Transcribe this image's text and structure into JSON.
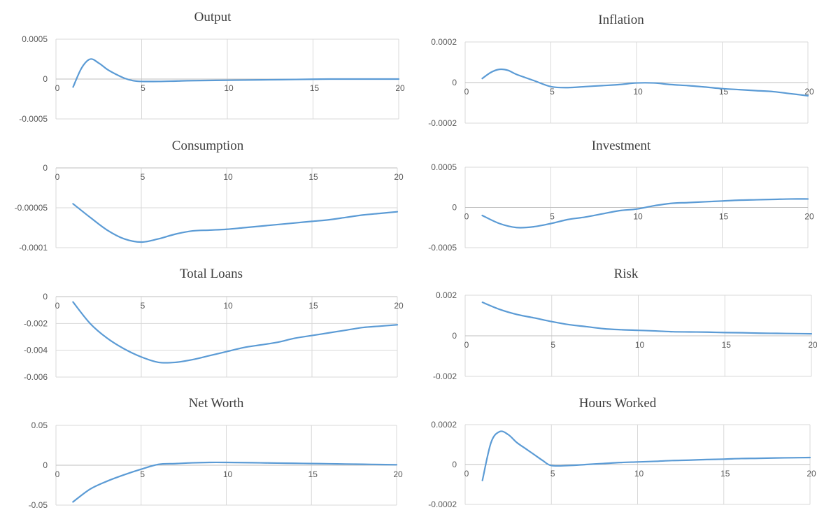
{
  "colors": {
    "series": "#5b9bd5",
    "grid": "#d9d9d9",
    "text": "#404040"
  },
  "chart_data": [
    {
      "type": "line",
      "title": "Output",
      "xticks": [
        "0",
        "5",
        "10",
        "15",
        "20"
      ],
      "yticks": [
        "0.0005",
        "0",
        "-0.0005"
      ],
      "ylim": [
        -0.0005,
        0.0005
      ],
      "xlim": [
        0,
        20
      ],
      "grid": true,
      "series": [
        {
          "x": [
            1,
            1.5,
            2,
            2.5,
            3,
            3.5,
            4,
            4.5,
            5,
            6,
            7,
            8,
            10,
            12,
            14,
            16,
            18,
            20
          ],
          "values": [
            -0.0001,
            0.00014,
            0.00025,
            0.0002,
            0.00012,
            6e-05,
            1e-05,
            -2e-05,
            -3e-05,
            -3e-05,
            -2.5e-05,
            -2e-05,
            -1.5e-05,
            -1e-05,
            -5e-06,
            0.0,
            0.0,
            0.0
          ]
        }
      ]
    },
    {
      "type": "line",
      "title": "Inflation",
      "xticks": [
        "0",
        "5",
        "10",
        "15",
        "20"
      ],
      "yticks": [
        "0.0002",
        "0",
        "-0.0002"
      ],
      "ylim": [
        -0.0002,
        0.0002
      ],
      "xlim": [
        0,
        20
      ],
      "grid": true,
      "series": [
        {
          "x": [
            1,
            1.5,
            2,
            2.5,
            3,
            4,
            5,
            6,
            7,
            8,
            9,
            10,
            11,
            12,
            13,
            14,
            15,
            16,
            17,
            18,
            19,
            20
          ],
          "values": [
            2e-05,
            5e-05,
            6.5e-05,
            6e-05,
            4e-05,
            1e-05,
            -2e-05,
            -2.5e-05,
            -2e-05,
            -1.5e-05,
            -1e-05,
            -2e-06,
            -2e-06,
            -1e-05,
            -1.5e-05,
            -2.2e-05,
            -3e-05,
            -3.5e-05,
            -4e-05,
            -4.5e-05,
            -5.5e-05,
            -6.5e-05
          ]
        }
      ]
    },
    {
      "type": "line",
      "title": "Consumption",
      "xticks": [
        "0",
        "5",
        "10",
        "15",
        "20"
      ],
      "yticks": [
        "0",
        "-0.00005",
        "-0.0001"
      ],
      "ylim": [
        -0.0001,
        0
      ],
      "xlim": [
        0,
        20
      ],
      "grid": true,
      "series": [
        {
          "x": [
            1,
            2,
            3,
            4,
            5,
            6,
            7,
            8,
            9,
            10,
            11,
            12,
            13,
            14,
            15,
            16,
            17,
            18,
            19,
            20
          ],
          "values": [
            -4.5e-05,
            -6.2e-05,
            -7.8e-05,
            -8.9e-05,
            -9.3e-05,
            -8.9e-05,
            -8.3e-05,
            -7.9e-05,
            -7.8e-05,
            -7.7e-05,
            -7.5e-05,
            -7.3e-05,
            -7.1e-05,
            -6.9e-05,
            -6.7e-05,
            -6.5e-05,
            -6.2e-05,
            -5.9e-05,
            -5.7e-05,
            -5.5e-05
          ]
        }
      ]
    },
    {
      "type": "line",
      "title": "Investment",
      "xticks": [
        "0",
        "5",
        "10",
        "15",
        "20"
      ],
      "yticks": [
        "0.0005",
        "0",
        "-0.0005"
      ],
      "ylim": [
        -0.0005,
        0.0005
      ],
      "xlim": [
        0,
        20
      ],
      "grid": true,
      "series": [
        {
          "x": [
            1,
            2,
            3,
            4,
            5,
            6,
            7,
            8,
            9,
            10,
            11,
            12,
            13,
            14,
            15,
            16,
            17,
            18,
            19,
            20
          ],
          "values": [
            -0.0001,
            -0.0002,
            -0.00025,
            -0.00024,
            -0.0002,
            -0.00015,
            -0.00012,
            -8e-05,
            -4e-05,
            -2e-05,
            2e-05,
            5e-05,
            6e-05,
            7e-05,
            8e-05,
            9e-05,
            9.5e-05,
            0.0001,
            0.000105,
            0.000105
          ]
        }
      ]
    },
    {
      "type": "line",
      "title": "Total Loans",
      "xticks": [
        "0",
        "5",
        "10",
        "15",
        "20"
      ],
      "yticks": [
        "0",
        "-0.002",
        "-0.004",
        "-0.006"
      ],
      "ylim": [
        -0.006,
        0
      ],
      "xlim": [
        0,
        20
      ],
      "grid": true,
      "series": [
        {
          "x": [
            1,
            2,
            3,
            4,
            5,
            6,
            7,
            8,
            9,
            10,
            11,
            12,
            13,
            14,
            15,
            16,
            17,
            18,
            19,
            20
          ],
          "values": [
            -0.0004,
            -0.002,
            -0.0031,
            -0.0039,
            -0.0045,
            -0.0049,
            -0.0049,
            -0.0047,
            -0.0044,
            -0.0041,
            -0.0038,
            -0.0036,
            -0.0034,
            -0.0031,
            -0.0029,
            -0.0027,
            -0.0025,
            -0.0023,
            -0.0022,
            -0.0021
          ]
        }
      ]
    },
    {
      "type": "line",
      "title": "Risk",
      "xticks": [
        "0",
        "5",
        "10",
        "15",
        "20"
      ],
      "yticks": [
        "0.002",
        "0",
        "-0.002"
      ],
      "ylim": [
        -0.002,
        0.002
      ],
      "xlim": [
        0,
        20
      ],
      "grid": true,
      "series": [
        {
          "x": [
            1,
            2,
            3,
            4,
            5,
            6,
            7,
            8,
            9,
            10,
            11,
            12,
            13,
            14,
            15,
            16,
            17,
            18,
            19,
            20
          ],
          "values": [
            0.00165,
            0.0013,
            0.00105,
            0.00088,
            0.0007,
            0.00055,
            0.00045,
            0.00035,
            0.0003,
            0.00027,
            0.00024,
            0.0002,
            0.00019,
            0.00018,
            0.00016,
            0.00015,
            0.00013,
            0.00012,
            0.00011,
            0.0001
          ]
        }
      ]
    },
    {
      "type": "line",
      "title": "Net Worth",
      "xticks": [
        "0",
        "5",
        "10",
        "15",
        "20"
      ],
      "yticks": [
        "0.05",
        "0",
        "-0.05"
      ],
      "ylim": [
        -0.05,
        0.05
      ],
      "xlim": [
        0,
        20
      ],
      "grid": true,
      "series": [
        {
          "x": [
            1,
            2,
            3,
            4,
            5,
            6,
            7,
            8,
            9,
            10,
            11,
            12,
            13,
            14,
            15,
            16,
            17,
            18,
            19,
            20
          ],
          "values": [
            -0.046,
            -0.03,
            -0.02,
            -0.012,
            -0.005,
            0.001,
            0.002,
            0.003,
            0.0035,
            0.0035,
            0.0033,
            0.003,
            0.0027,
            0.0024,
            0.0021,
            0.0018,
            0.0015,
            0.0012,
            0.0009,
            0.0006
          ]
        }
      ]
    },
    {
      "type": "line",
      "title": "Hours Worked",
      "xticks": [
        "0",
        "5",
        "10",
        "15",
        "20"
      ],
      "yticks": [
        "0.0002",
        "0",
        "-0.0002"
      ],
      "ylim": [
        -0.0002,
        0.0002
      ],
      "xlim": [
        0,
        20
      ],
      "grid": true,
      "series": [
        {
          "x": [
            1,
            1.5,
            2,
            2.5,
            3,
            3.5,
            4,
            4.5,
            5,
            6,
            7,
            8,
            9,
            10,
            11,
            12,
            13,
            14,
            15,
            16,
            17,
            18,
            19,
            20
          ],
          "values": [
            -8e-05,
            0.00011,
            0.000165,
            0.00015,
            0.00011,
            8e-05,
            5e-05,
            2e-05,
            -5e-06,
            -5e-06,
            0.0,
            5e-06,
            1e-05,
            1.3e-05,
            1.6e-05,
            2e-05,
            2.2e-05,
            2.5e-05,
            2.7e-05,
            3e-05,
            3.1e-05,
            3.3e-05,
            3.4e-05,
            3.5e-05
          ]
        }
      ]
    }
  ]
}
